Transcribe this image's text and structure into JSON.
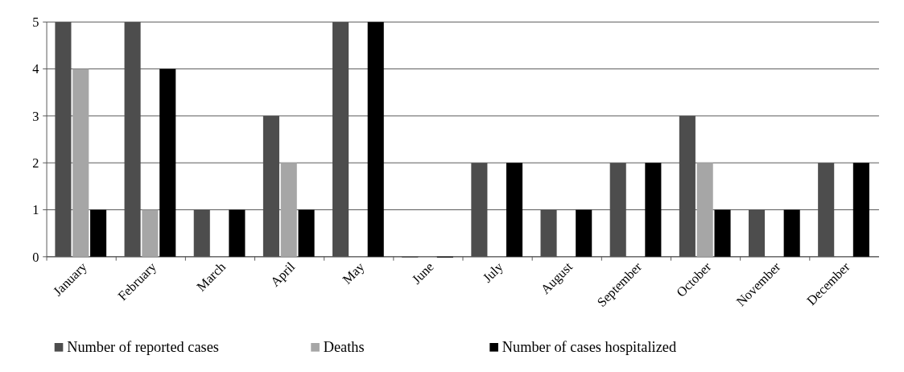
{
  "chart_data": {
    "type": "bar",
    "categories": [
      "January",
      "February",
      "March",
      "April",
      "May",
      "June",
      "July",
      "August",
      "September",
      "October",
      "November",
      "December"
    ],
    "series": [
      {
        "name": "Number of reported cases",
        "color": "#4d4d4d",
        "values": [
          5,
          5,
          1,
          3,
          5,
          0,
          2,
          1,
          2,
          3,
          1,
          2
        ]
      },
      {
        "name": "Deaths",
        "color": "#a6a6a6",
        "values": [
          4,
          1,
          0,
          2,
          0,
          0,
          0,
          0,
          0,
          2,
          0,
          0
        ]
      },
      {
        "name": "Number of cases hospitalized",
        "color": "#000000",
        "values": [
          1,
          4,
          1,
          1,
          5,
          0,
          2,
          1,
          2,
          1,
          1,
          2
        ]
      }
    ],
    "ylim": [
      0,
      5
    ],
    "yticks": [
      0,
      1,
      2,
      3,
      4,
      5
    ],
    "grid": "y",
    "legend": "bottom"
  }
}
